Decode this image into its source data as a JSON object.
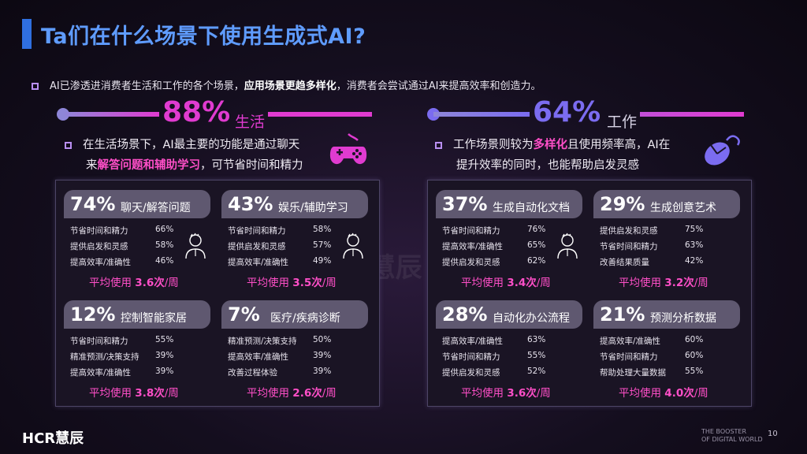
{
  "title": "Ta们在什么场景下使用生成式AI?",
  "intro": {
    "pre": "AI已渗透进消费者生活和工作的各个场景，",
    "bold": "应用场景更趋多样化",
    "post": "，消费者会尝试通过AI来提高效率和创造力。"
  },
  "life": {
    "pct": "88%",
    "label": "生活",
    "line1": "在生活场景下，AI最主要的功能是通过聊天",
    "line2_pre": "来",
    "line2_hl": "解答问题和辅助学习",
    "line2_post": "，可节省时间和精力",
    "color": "#e03bd0",
    "icon": "gamepad-icon",
    "cards": [
      {
        "pct": "74%",
        "label": "聊天/解答问题",
        "rows": [
          {
            "k": "节省时间和精力",
            "v": "66%"
          },
          {
            "k": "提供启发和灵感",
            "v": "58%"
          },
          {
            "k": "提高效率/准确性",
            "v": "46%"
          }
        ],
        "avg_pre": "平均使用 ",
        "avg_val": "3.6次",
        "avg_post": "/周",
        "icon": "person-icon"
      },
      {
        "pct": "43%",
        "label": "娱乐/辅助学习",
        "rows": [
          {
            "k": "节省时间和精力",
            "v": "58%"
          },
          {
            "k": "提供启发和灵感",
            "v": "57%"
          },
          {
            "k": "提高效率/准确性",
            "v": "49%"
          }
        ],
        "avg_pre": "平均使用 ",
        "avg_val": "3.5次",
        "avg_post": "/周",
        "icon": "person-icon"
      },
      {
        "pct": "12%",
        "label": "控制智能家居",
        "rows": [
          {
            "k": "节省时间和精力",
            "v": "55%"
          },
          {
            "k": "精准预测/决策支持",
            "v": "39%"
          },
          {
            "k": "提高效率/准确性",
            "v": "39%"
          }
        ],
        "avg_pre": "平均使用 ",
        "avg_val": "3.8次",
        "avg_post": "/周"
      },
      {
        "pct": "7%",
        "label": "医疗/疾病诊断",
        "rows": [
          {
            "k": "精准预测/决策支持",
            "v": "50%"
          },
          {
            "k": "提高效率/准确性",
            "v": "39%"
          },
          {
            "k": "改善过程体验",
            "v": "39%"
          }
        ],
        "avg_pre": "平均使用 ",
        "avg_val": "2.6次",
        "avg_post": "/周"
      }
    ]
  },
  "work": {
    "pct": "64%",
    "label": "工作",
    "line1_pre": "工作场景则较为",
    "line1_hl": "多样化",
    "line1_post": "且使用频率高，AI在",
    "line2": "提升效率的同时，也能帮助启发灵感",
    "color": "#7b6cf0",
    "icon": "mouse-icon",
    "cards": [
      {
        "pct": "37%",
        "label": "生成自动化文档",
        "rows": [
          {
            "k": "节省时间和精力",
            "v": "76%"
          },
          {
            "k": "提高效率/准确性",
            "v": "65%"
          },
          {
            "k": "提供启发和灵感",
            "v": "62%"
          }
        ],
        "avg_pre": "平均使用 ",
        "avg_val": "3.4次",
        "avg_post": "/周",
        "icon": "person-icon"
      },
      {
        "pct": "29%",
        "label": "生成创意艺术",
        "rows": [
          {
            "k": "提供启发和灵感",
            "v": "75%"
          },
          {
            "k": "节省时间和精力",
            "v": "63%"
          },
          {
            "k": "改善结果质量",
            "v": "42%"
          }
        ],
        "avg_pre": "平均使用 ",
        "avg_val": "3.2次",
        "avg_post": "/周"
      },
      {
        "pct": "28%",
        "label": "自动化办公流程",
        "rows": [
          {
            "k": "提高效率/准确性",
            "v": "63%"
          },
          {
            "k": "节省时间和精力",
            "v": "55%"
          },
          {
            "k": "提供启发和灵感",
            "v": "52%"
          }
        ],
        "avg_pre": "平均使用 ",
        "avg_val": "3.6次",
        "avg_post": "/周"
      },
      {
        "pct": "21%",
        "label": "预测分析数据",
        "rows": [
          {
            "k": "提高效率/准确性",
            "v": "60%"
          },
          {
            "k": "节省时间和精力",
            "v": "60%"
          },
          {
            "k": "帮助处理大量数据",
            "v": "55%"
          }
        ],
        "avg_pre": "平均使用 ",
        "avg_val": "4.0次",
        "avg_post": "/周"
      }
    ]
  },
  "footer": {
    "logo": "HCR慧辰",
    "watermark": "HCR慧辰",
    "slogan1": "THE BOOSTER",
    "slogan2": "OF DIGITAL WORLD",
    "page": "10"
  }
}
